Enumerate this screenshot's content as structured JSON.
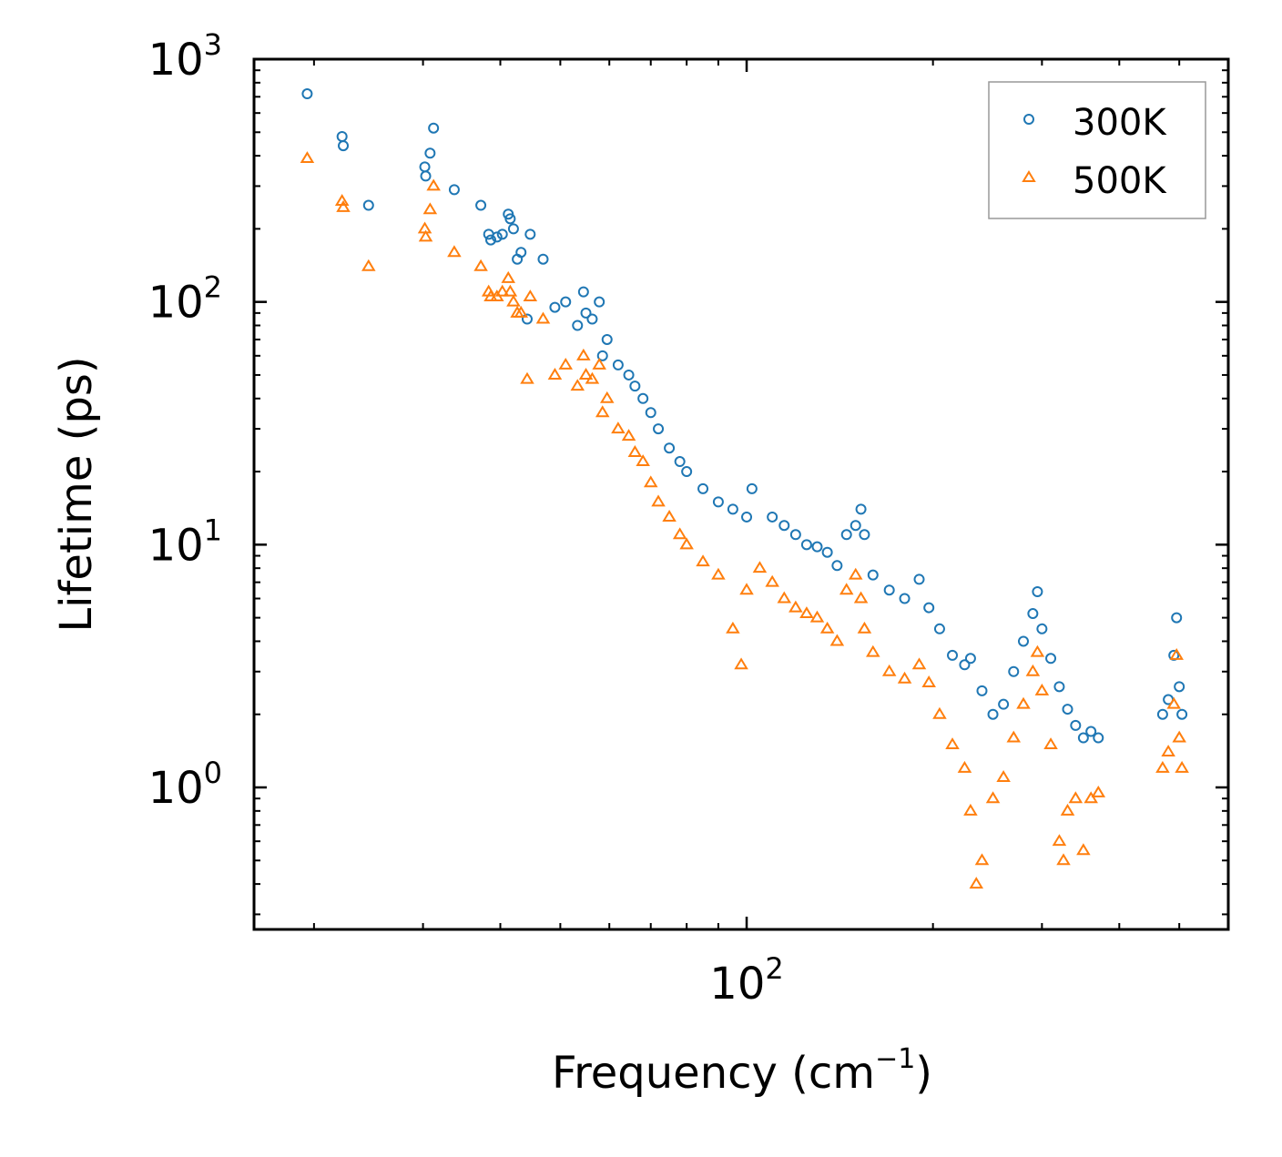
{
  "chart_data": {
    "type": "scatter",
    "xscale": "log",
    "yscale": "log",
    "xlabel": "Frequency (cm",
    "xlabel_sup": "−1",
    "xlabel_end": ")",
    "ylabel": "Lifetime (ps)",
    "xlim": [
      16,
      600
    ],
    "ylim": [
      0.26,
      1000
    ],
    "x_ticks": [
      {
        "base": "10",
        "exp": "2",
        "value": 100
      }
    ],
    "y_ticks": [
      {
        "base": "10",
        "exp": "0",
        "value": 1
      },
      {
        "base": "10",
        "exp": "1",
        "value": 10
      },
      {
        "base": "10",
        "exp": "2",
        "value": 100
      },
      {
        "base": "10",
        "exp": "3",
        "value": 1000
      }
    ],
    "legend": {
      "position": "top-right"
    },
    "series": [
      {
        "name": "300K",
        "color": "#1f77b4",
        "marker": "circle",
        "points": [
          [
            19.5,
            720
          ],
          [
            22.2,
            480
          ],
          [
            22.3,
            440
          ],
          [
            24.5,
            250
          ],
          [
            30.2,
            360
          ],
          [
            30.3,
            330
          ],
          [
            30.8,
            410
          ],
          [
            31.2,
            520
          ],
          [
            33.7,
            290
          ],
          [
            37.2,
            250
          ],
          [
            38.3,
            190
          ],
          [
            38.6,
            180
          ],
          [
            39.5,
            185
          ],
          [
            40.3,
            190
          ],
          [
            41.2,
            230
          ],
          [
            41.5,
            220
          ],
          [
            42.0,
            200
          ],
          [
            42.6,
            150
          ],
          [
            43.2,
            160
          ],
          [
            44.7,
            190
          ],
          [
            46.9,
            150
          ],
          [
            44.2,
            85
          ],
          [
            49.0,
            95
          ],
          [
            51.0,
            100
          ],
          [
            53.3,
            80
          ],
          [
            54.5,
            110
          ],
          [
            55.0,
            90
          ],
          [
            56.3,
            85
          ],
          [
            57.8,
            100
          ],
          [
            58.5,
            60
          ],
          [
            59.5,
            70
          ],
          [
            62.0,
            55
          ],
          [
            64.5,
            50
          ],
          [
            66.0,
            45
          ],
          [
            68.0,
            40
          ],
          [
            70.0,
            35
          ],
          [
            72.0,
            30
          ],
          [
            75.0,
            25
          ],
          [
            78.0,
            22
          ],
          [
            80.0,
            20
          ],
          [
            85.0,
            17
          ],
          [
            90.0,
            15
          ],
          [
            95.0,
            14
          ],
          [
            100.0,
            13
          ],
          [
            102.0,
            17
          ],
          [
            110.0,
            13
          ],
          [
            115.0,
            12
          ],
          [
            120.0,
            11
          ],
          [
            125.0,
            10
          ],
          [
            130.0,
            9.8
          ],
          [
            135.0,
            9.3
          ],
          [
            140.0,
            8.2
          ],
          [
            145.0,
            11
          ],
          [
            150.0,
            12
          ],
          [
            153.0,
            14
          ],
          [
            155.0,
            11
          ],
          [
            160.0,
            7.5
          ],
          [
            170.0,
            6.5
          ],
          [
            180.0,
            6
          ],
          [
            190.0,
            7.2
          ],
          [
            197.0,
            5.5
          ],
          [
            205.0,
            4.5
          ],
          [
            215.0,
            3.5
          ],
          [
            225.0,
            3.2
          ],
          [
            230.0,
            3.4
          ],
          [
            240.0,
            2.5
          ],
          [
            250.0,
            2
          ],
          [
            260.0,
            2.2
          ],
          [
            270.0,
            3.0
          ],
          [
            280.0,
            4.0
          ],
          [
            290.0,
            5.2
          ],
          [
            295.0,
            6.4
          ],
          [
            300.0,
            4.5
          ],
          [
            310.0,
            3.4
          ],
          [
            320.0,
            2.6
          ],
          [
            330.0,
            2.1
          ],
          [
            340.0,
            1.8
          ],
          [
            350.0,
            1.6
          ],
          [
            360.0,
            1.7
          ],
          [
            370.0,
            1.6
          ],
          [
            470.0,
            2.0
          ],
          [
            480.0,
            2.3
          ],
          [
            490.0,
            3.5
          ],
          [
            495.0,
            5.0
          ],
          [
            500.0,
            2.6
          ],
          [
            505.0,
            2.0
          ]
        ]
      },
      {
        "name": "500K",
        "color": "#ff7f0e",
        "marker": "triangle",
        "points": [
          [
            19.5,
            390
          ],
          [
            22.2,
            260
          ],
          [
            22.3,
            245
          ],
          [
            24.5,
            140
          ],
          [
            30.2,
            200
          ],
          [
            30.3,
            185
          ],
          [
            30.8,
            240
          ],
          [
            31.2,
            300
          ],
          [
            33.7,
            160
          ],
          [
            37.2,
            140
          ],
          [
            38.3,
            110
          ],
          [
            38.6,
            105
          ],
          [
            39.5,
            105
          ],
          [
            40.3,
            110
          ],
          [
            41.2,
            125
          ],
          [
            41.5,
            110
          ],
          [
            42.0,
            100
          ],
          [
            42.6,
            90
          ],
          [
            43.2,
            90
          ],
          [
            44.7,
            105
          ],
          [
            46.9,
            85
          ],
          [
            44.2,
            48
          ],
          [
            49.0,
            50
          ],
          [
            51.0,
            55
          ],
          [
            53.3,
            45
          ],
          [
            54.5,
            60
          ],
          [
            55.0,
            50
          ],
          [
            56.3,
            48
          ],
          [
            57.8,
            55
          ],
          [
            58.5,
            35
          ],
          [
            59.5,
            40
          ],
          [
            62.0,
            30
          ],
          [
            64.5,
            28
          ],
          [
            66.0,
            24
          ],
          [
            68.0,
            22
          ],
          [
            70.0,
            18
          ],
          [
            72.0,
            15
          ],
          [
            75.0,
            13
          ],
          [
            78.0,
            11
          ],
          [
            80.0,
            10
          ],
          [
            85.0,
            8.5
          ],
          [
            90.0,
            7.5
          ],
          [
            95.0,
            4.5
          ],
          [
            98.0,
            3.2
          ],
          [
            100.0,
            6.5
          ],
          [
            105.0,
            8.0
          ],
          [
            110.0,
            7.0
          ],
          [
            115.0,
            6.0
          ],
          [
            120.0,
            5.5
          ],
          [
            125.0,
            5.2
          ],
          [
            130.0,
            5.0
          ],
          [
            135.0,
            4.5
          ],
          [
            140.0,
            4.0
          ],
          [
            145.0,
            6.5
          ],
          [
            150.0,
            7.5
          ],
          [
            153.0,
            6.0
          ],
          [
            155.0,
            4.5
          ],
          [
            160.0,
            3.6
          ],
          [
            170.0,
            3.0
          ],
          [
            180.0,
            2.8
          ],
          [
            190.0,
            3.2
          ],
          [
            197.0,
            2.7
          ],
          [
            205.0,
            2.0
          ],
          [
            215.0,
            1.5
          ],
          [
            225.0,
            1.2
          ],
          [
            230.0,
            0.8
          ],
          [
            235.0,
            0.4
          ],
          [
            240.0,
            0.5
          ],
          [
            250.0,
            0.9
          ],
          [
            260.0,
            1.1
          ],
          [
            270.0,
            1.6
          ],
          [
            280.0,
            2.2
          ],
          [
            290.0,
            3.0
          ],
          [
            295.0,
            3.6
          ],
          [
            300.0,
            2.5
          ],
          [
            310.0,
            1.5
          ],
          [
            320.0,
            0.6
          ],
          [
            325.0,
            0.5
          ],
          [
            330.0,
            0.8
          ],
          [
            340.0,
            0.9
          ],
          [
            350.0,
            0.55
          ],
          [
            360.0,
            0.9
          ],
          [
            370.0,
            0.95
          ],
          [
            470.0,
            1.2
          ],
          [
            480.0,
            1.4
          ],
          [
            490.0,
            2.2
          ],
          [
            495.0,
            3.5
          ],
          [
            500.0,
            1.6
          ],
          [
            505.0,
            1.2
          ]
        ]
      }
    ]
  }
}
